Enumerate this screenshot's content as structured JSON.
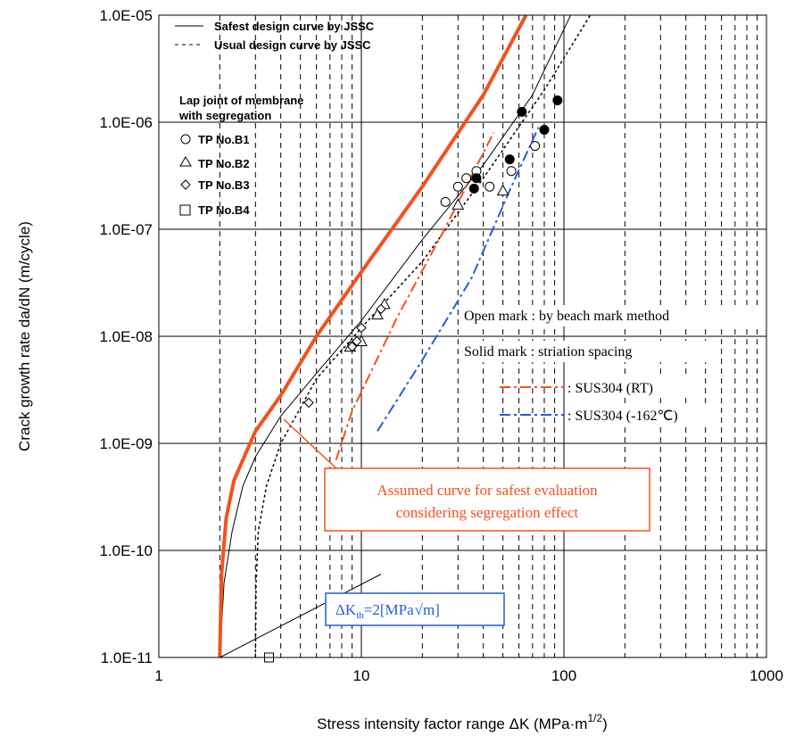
{
  "chart_data": {
    "type": "scatter",
    "x_scale": "log",
    "y_scale": "log",
    "xlim": [
      1,
      1000
    ],
    "ylim": [
      1e-11,
      1e-05
    ],
    "grid": true,
    "xlabel_main": "Stress intensity factor range  ΔK  (MPa·m",
    "xlabel_sup": "1/2",
    "xlabel_end": ")",
    "ylabel": "Crack growth rate  da/dN  (m/cycle)",
    "x_ticks": [
      {
        "value": 1,
        "label": "1"
      },
      {
        "value": 10,
        "label": "10"
      },
      {
        "value": 100,
        "label": "100"
      },
      {
        "value": 1000,
        "label": "1000"
      }
    ],
    "y_ticks": [
      {
        "value": 1e-11,
        "label": "1.0E-11"
      },
      {
        "value": 1e-10,
        "label": "1.0E-10"
      },
      {
        "value": 1e-09,
        "label": "1.0E-09"
      },
      {
        "value": 1e-08,
        "label": "1.0E-08"
      },
      {
        "value": 1e-07,
        "label": "1.0E-07"
      },
      {
        "value": 1e-06,
        "label": "1.0E-06"
      },
      {
        "value": 1e-05,
        "label": "1.0E-05"
      }
    ],
    "legend": {
      "placement": "top-left",
      "curves": [
        {
          "label": "Safest design curve by JSSC",
          "style": "solid"
        },
        {
          "label": "Usual design curve by JSSC",
          "style": "dashed"
        }
      ],
      "group_title_1": "Lap joint of membrane",
      "group_title_2": "with segregation",
      "markers": [
        {
          "label": "TP No.B1",
          "marker": "circle"
        },
        {
          "label": "TP No.B2",
          "marker": "triangle"
        },
        {
          "label": "TP No.B3",
          "marker": "diamond"
        },
        {
          "label": "TP No.B4",
          "marker": "square"
        }
      ]
    },
    "curves": [
      {
        "name": "Safest design curve by JSSC",
        "color": "#000000",
        "dash": "",
        "width": 1,
        "points": [
          [
            2.0,
            1e-11
          ],
          [
            2.1,
            5e-11
          ],
          [
            2.3,
            1.5e-10
          ],
          [
            2.6,
            4e-10
          ],
          [
            3.0,
            7.5e-10
          ],
          [
            4.0,
            1.8e-09
          ],
          [
            6.0,
            4.5e-09
          ],
          [
            10.0,
            1.4e-08
          ],
          [
            20.0,
            8e-08
          ],
          [
            40.0,
            4e-07
          ],
          [
            70.0,
            1.8e-06
          ],
          [
            108.0,
            1e-05
          ]
        ]
      },
      {
        "name": "Usual design curve by JSSC",
        "color": "#000000",
        "dash": "3 3",
        "width": 1.5,
        "points": [
          [
            3.0,
            1e-11
          ],
          [
            3.02,
            5e-11
          ],
          [
            3.1,
            1.5e-10
          ],
          [
            3.4,
            4e-10
          ],
          [
            4.0,
            1e-09
          ],
          [
            6.0,
            4e-09
          ],
          [
            10.0,
            1.2e-08
          ],
          [
            20.0,
            5e-08
          ],
          [
            40.0,
            3e-07
          ],
          [
            80.0,
            2e-06
          ],
          [
            135.0,
            1e-05
          ]
        ]
      },
      {
        "name": "Assumed curve for safest evaluation considering segregation effect",
        "color": "#f4511e",
        "dash": "",
        "width": 4,
        "points": [
          [
            2.0,
            1e-11
          ],
          [
            2.04,
            6e-11
          ],
          [
            2.15,
            2e-10
          ],
          [
            2.35,
            4.5e-10
          ],
          [
            3.0,
            1.3e-09
          ],
          [
            4.0,
            2.8e-09
          ],
          [
            6.0,
            1e-08
          ],
          [
            10.0,
            4e-08
          ],
          [
            20.0,
            2.5e-07
          ],
          [
            40.0,
            1.8e-06
          ],
          [
            65.0,
            1e-05
          ]
        ]
      },
      {
        "name": "SUS304 (RT)",
        "color": "#f4511e",
        "dash": "12 4 3 4",
        "width": 2,
        "points": [
          [
            7.5,
            7e-10
          ],
          [
            9.0,
            2e-09
          ],
          [
            15.0,
            1.5e-08
          ],
          [
            25.0,
            9e-08
          ],
          [
            45.0,
            8e-07
          ]
        ]
      },
      {
        "name": "SUS304 (-162℃)",
        "color": "#1e5fd8",
        "dash": "12 4 3 4",
        "width": 2,
        "points": [
          [
            12.0,
            1.3e-09
          ],
          [
            20.0,
            6e-09
          ],
          [
            35.0,
            3.5e-08
          ],
          [
            55.0,
            2.5e-07
          ],
          [
            75.0,
            9e-07
          ]
        ]
      }
    ],
    "threshold_line": [
      [
        2.0,
        1e-11
      ],
      [
        12.5,
        6e-11
      ]
    ],
    "series": [
      {
        "marker": "circle",
        "filled": false,
        "points": [
          [
            26,
            1.8e-07
          ],
          [
            30,
            2.5e-07
          ],
          [
            33,
            3e-07
          ],
          [
            37,
            3.5e-07
          ],
          [
            43,
            2.5e-07
          ],
          [
            55,
            3.5e-07
          ],
          [
            72,
            6e-07
          ]
        ]
      },
      {
        "marker": "triangle",
        "filled": false,
        "points": [
          [
            8.8,
            8e-09
          ],
          [
            10,
            9e-09
          ],
          [
            12,
            1.6e-08
          ],
          [
            13,
            2e-08
          ],
          [
            30,
            1.7e-07
          ],
          [
            50,
            2.3e-07
          ]
        ]
      },
      {
        "marker": "diamond",
        "filled": false,
        "points": [
          [
            5.5,
            2.4e-09
          ],
          [
            9.0,
            8e-09
          ],
          [
            9.5,
            9e-09
          ],
          [
            10.0,
            1.2e-08
          ],
          [
            12.5,
            1.8e-08
          ]
        ]
      },
      {
        "marker": "square",
        "filled": false,
        "points": [
          [
            3.5,
            1e-11
          ]
        ]
      },
      {
        "marker": "circle",
        "filled": true,
        "points": [
          [
            36,
            2.4e-07
          ],
          [
            37,
            3e-07
          ],
          [
            54,
            4.5e-07
          ],
          [
            62,
            1.25e-06
          ],
          [
            80,
            8.5e-07
          ],
          [
            93,
            1.6e-06
          ]
        ]
      }
    ],
    "annotations": {
      "open_mark": "Open mark : by beach mark method",
      "solid_mark": "Solid mark : striation spacing",
      "rt_label": ": SUS304 (RT)",
      "cryo_label": ": SUS304 (-162℃)",
      "assumed_line1": "Assumed curve for safest evaluation",
      "assumed_line2": "considering segregation effect",
      "threshold_prefix": "ΔK",
      "threshold_sub": "th",
      "threshold_mid": "=2[MPa",
      "threshold_root": "m]"
    },
    "colors": {
      "orange": "#f4511e",
      "blue": "#1e5fd8",
      "black": "#000000"
    }
  }
}
